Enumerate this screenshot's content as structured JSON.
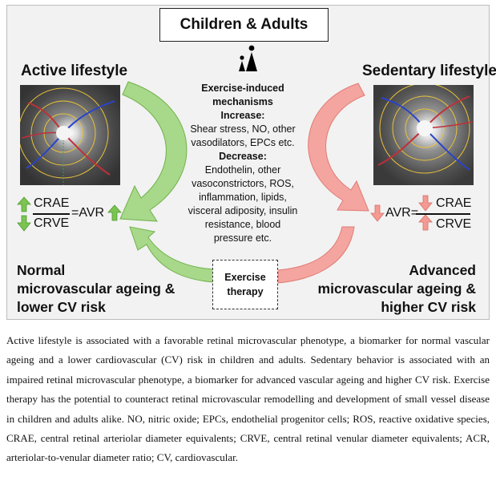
{
  "figure": {
    "title": "Children & Adults",
    "left": {
      "heading": "Active lifestyle",
      "crae": "CRAE",
      "crve": "CRVE",
      "avr": "=AVR",
      "outcome": [
        "Normal",
        "microvascular ageing &",
        "lower CV risk"
      ]
    },
    "right": {
      "heading": "Sedentary lifestyle",
      "avr": "AVR=",
      "crae": "CRAE",
      "crve": "CRVE",
      "outcome": [
        "Advanced",
        "microvascular ageing &",
        "higher CV risk"
      ]
    },
    "mechanisms": {
      "heading_lines": [
        "Exercise-induced",
        "mechanisms"
      ],
      "increase_label": "Increase:",
      "increase_lines": [
        "Shear stress, NO, other",
        "vasodilators, EPCs etc."
      ],
      "decrease_label": "Decrease:",
      "decrease_lines": [
        "Endothelin, other",
        "vasoconstrictors, ROS,",
        "inflammation, lipids,",
        "visceral adiposity, insulin",
        "resistance, blood",
        "pressure etc."
      ]
    },
    "therapy": [
      "Exercise",
      "therapy"
    ],
    "colors": {
      "green": "#a8d88a",
      "green_stroke": "#6fb34a",
      "red": "#f5a5a0",
      "red_stroke": "#e07b74"
    }
  },
  "caption": "Active lifestyle is associated with a favorable retinal microvascular phenotype, a biomarker for normal vascular ageing and a lower cardiovascular (CV) risk in children and adults. Sedentary behavior is associated with an impaired retinal microvascular phenotype, a biomarker for advanced vascular ageing and higher CV risk. Exercise therapy has the potential to counteract retinal microvascular remodelling and development of small vessel disease in children and adults alike. NO, nitric oxide; EPCs, endothelial progenitor cells; ROS, reactive oxidative species, CRAE, central retinal arteriolar diameter equivalents; CRVE, central retinal venular diameter equivalents; ACR, arteriolar-to-venular diameter ratio; CV, cardiovascular."
}
